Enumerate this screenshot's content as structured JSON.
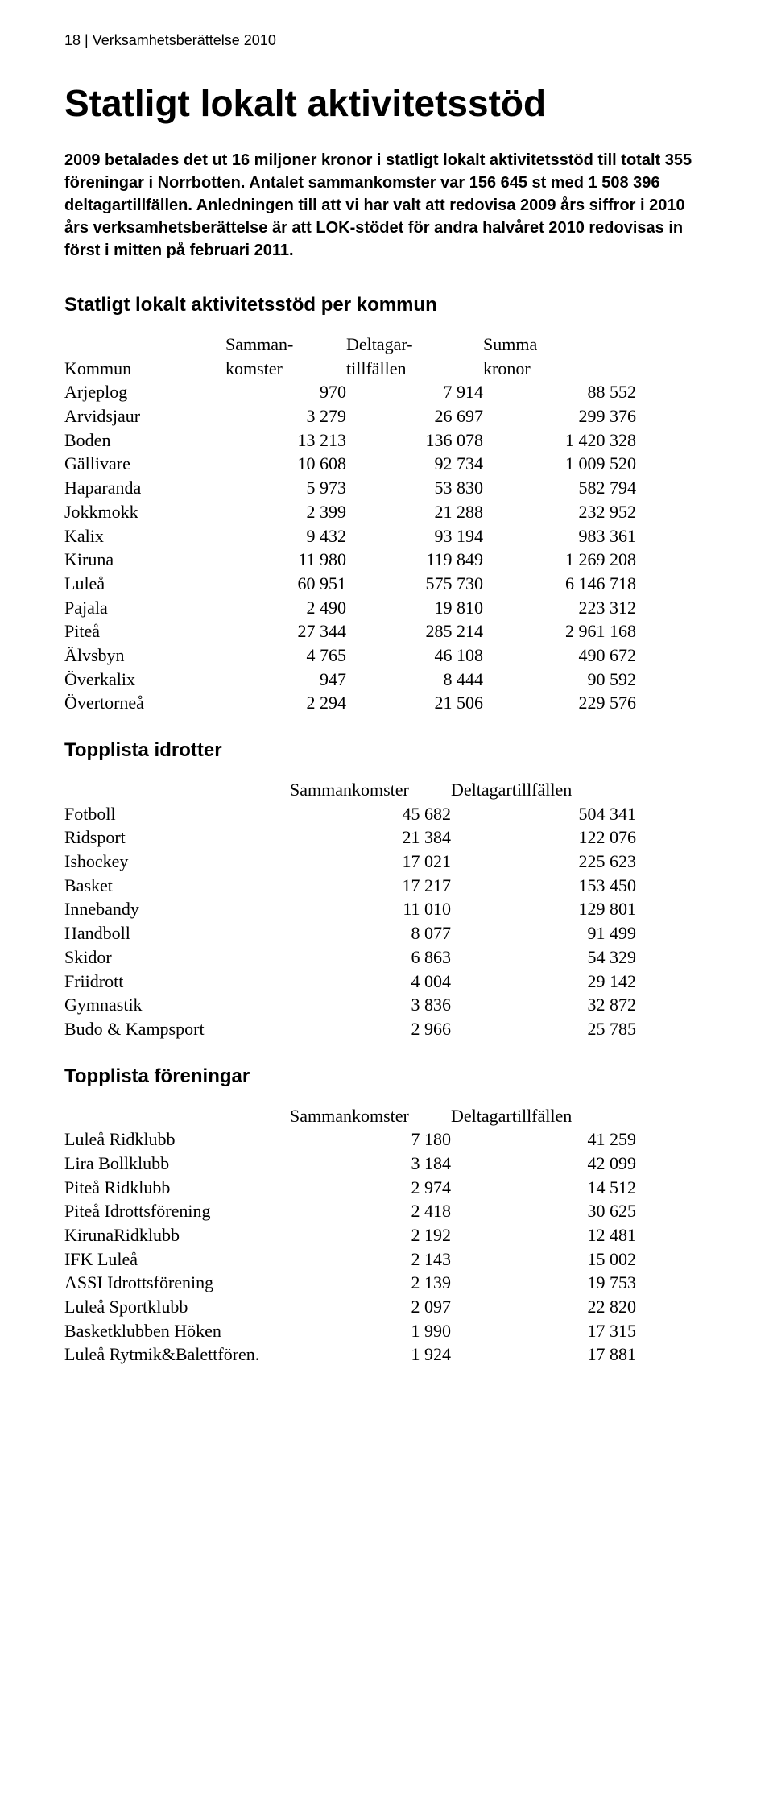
{
  "header": "18 | Verksamhetsberättelse 2010",
  "title": "Statligt lokalt aktivitetsstöd",
  "intro": "2009 betalades det ut 16 miljoner kronor i statligt lokalt aktivitetsstöd till totalt 355 föreningar i Norrbotten. Antalet sammankomster var 156 645 st med 1 508 396 deltagartillfällen. Anledningen till att vi har valt att redovisa 2009 års siffror i 2010 års verksamhetsberättelse är att LOK-stödet för andra halvåret 2010 redovisas in först i mitten på februari 2011.",
  "sections": {
    "kommun": {
      "title": "Statligt lokalt aktivitetsstöd per kommun",
      "headers": {
        "name_top": "",
        "name_bot": "Kommun",
        "col1_top": "Samman-",
        "col1_bot": "komster",
        "col2_top": "Deltagar-",
        "col2_bot": "tillfällen",
        "col3_top": "Summa",
        "col3_bot": "kronor"
      },
      "rows": [
        {
          "name": "Arjeplog",
          "a": "970",
          "b": "7 914",
          "c": "88 552"
        },
        {
          "name": "Arvidsjaur",
          "a": "3 279",
          "b": "26 697",
          "c": "299 376"
        },
        {
          "name": "Boden",
          "a": "13 213",
          "b": "136 078",
          "c": "1 420 328"
        },
        {
          "name": "Gällivare",
          "a": "10 608",
          "b": "92 734",
          "c": "1 009 520"
        },
        {
          "name": "Haparanda",
          "a": "5 973",
          "b": "53 830",
          "c": "582 794"
        },
        {
          "name": "Jokkmokk",
          "a": "2 399",
          "b": "21 288",
          "c": "232 952"
        },
        {
          "name": "Kalix",
          "a": "9 432",
          "b": "93 194",
          "c": "983 361"
        },
        {
          "name": "Kiruna",
          "a": "11 980",
          "b": "119 849",
          "c": "1 269 208"
        },
        {
          "name": "Luleå",
          "a": "60 951",
          "b": "575 730",
          "c": "6 146 718"
        },
        {
          "name": "Pajala",
          "a": "2 490",
          "b": "19 810",
          "c": "223 312"
        },
        {
          "name": "Piteå",
          "a": "27 344",
          "b": "285 214",
          "c": "2 961 168"
        },
        {
          "name": "Älvsbyn",
          "a": "4 765",
          "b": "46 108",
          "c": "490 672"
        },
        {
          "name": "Överkalix",
          "a": "947",
          "b": "8 444",
          "c": "90 592"
        },
        {
          "name": "Övertorneå",
          "a": "2 294",
          "b": "21 506",
          "c": "229 576"
        }
      ]
    },
    "idrotter": {
      "title": "Topplista idrotter",
      "headers": {
        "a": "Sammankomster",
        "b": "Deltagartillfällen"
      },
      "rows": [
        {
          "name": "Fotboll",
          "a": "45 682",
          "b": "504 341"
        },
        {
          "name": "Ridsport",
          "a": "21 384",
          "b": "122 076"
        },
        {
          "name": "Ishockey",
          "a": "17 021",
          "b": "225 623"
        },
        {
          "name": "Basket",
          "a": "17 217",
          "b": "153 450"
        },
        {
          "name": "Innebandy",
          "a": "11 010",
          "b": "129 801"
        },
        {
          "name": "Handboll",
          "a": "8 077",
          "b": "91 499"
        },
        {
          "name": "Skidor",
          "a": "6 863",
          "b": "54 329"
        },
        {
          "name": "Friidrott",
          "a": "4 004",
          "b": "29 142"
        },
        {
          "name": "Gymnastik",
          "a": "3 836",
          "b": "32 872"
        },
        {
          "name": "Budo & Kampsport",
          "a": "2 966",
          "b": "25 785"
        }
      ]
    },
    "foreningar": {
      "title": "Topplista föreningar",
      "headers": {
        "a": "Sammankomster",
        "b": "Deltagartillfällen"
      },
      "rows": [
        {
          "name": "Luleå Ridklubb",
          "a": "7 180",
          "b": "41 259"
        },
        {
          "name": "Lira Bollklubb",
          "a": "3 184",
          "b": "42 099"
        },
        {
          "name": "Piteå Ridklubb",
          "a": "2 974",
          "b": "14 512"
        },
        {
          "name": "Piteå Idrottsförening",
          "a": "2 418",
          "b": "30 625"
        },
        {
          "name": "KirunaRidklubb",
          "a": "2 192",
          "b": "12 481"
        },
        {
          "name": "IFK Luleå",
          "a": "2 143",
          "b": "15 002"
        },
        {
          "name": "ASSI Idrottsförening",
          "a": "2 139",
          "b": "19 753"
        },
        {
          "name": "Luleå Sportklubb",
          "a": "2 097",
          "b": "22 820"
        },
        {
          "name": "Basketklubben Höken",
          "a": "1 990",
          "b": "17 315"
        },
        {
          "name": "Luleå Rytmik&Balettfören.",
          "a": "1 924",
          "b": "17 881"
        }
      ]
    }
  }
}
